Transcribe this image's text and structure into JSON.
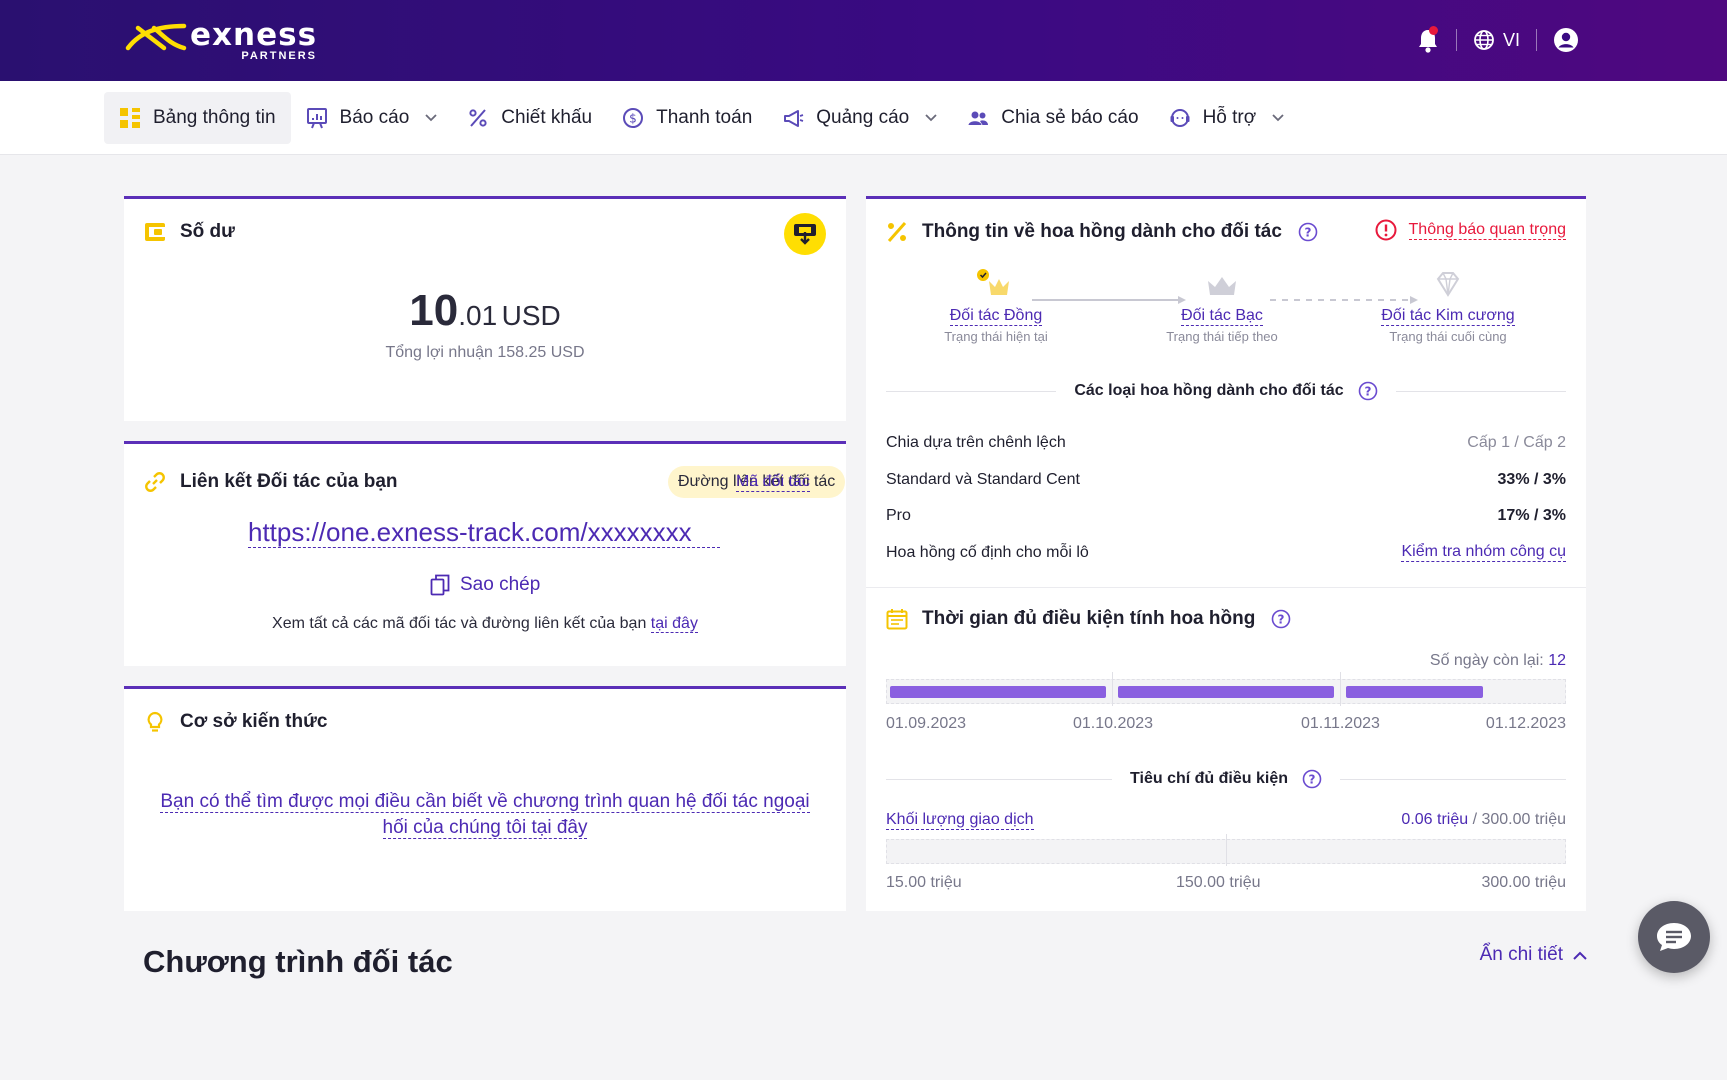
{
  "brand": {
    "name": "exness",
    "sub": "PARTNERS"
  },
  "header": {
    "language": "VI"
  },
  "nav": {
    "items": [
      {
        "label": "Bảng thông tin"
      },
      {
        "label": "Báo cáo"
      },
      {
        "label": "Chiết khấu"
      },
      {
        "label": "Thanh toán"
      },
      {
        "label": "Quảng cáo"
      },
      {
        "label": "Chia sẻ báo cáo"
      },
      {
        "label": "Hỗ trợ"
      }
    ]
  },
  "balance": {
    "title": "Số dư",
    "amount_int": "10",
    "amount_dec": ".01",
    "currency": "USD",
    "total_profit": "Tổng lợi nhuận 158.25 USD"
  },
  "partner_link": {
    "title": "Liên kết Đối tác của bạn",
    "pill": "Đường liên kết đối tác",
    "code_tab": "Mã đối tác",
    "url": "https://one.exness-track.com/xxxxxxxx",
    "copy": "Sao chép",
    "see_all_prefix": "Xem tất cả các mã đối tác và đường liên kết của bạn",
    "see_all_link": "tại đây"
  },
  "knowledge": {
    "title": "Cơ sở kiến thức",
    "line1": "Bạn có thể tìm được mọi điều cần biết về chương trình quan hệ đối tác ngoại",
    "line2": "hối của chúng tôi tại đây"
  },
  "commission": {
    "title": "Thông tin về hoa hồng dành cho đối tác",
    "important": "Thông báo quan trọng",
    "steps": [
      {
        "name": "Đối tác Đồng",
        "status": "Trạng thái hiện tại"
      },
      {
        "name": "Đối tác Bạc",
        "status": "Trạng thái tiếp theo"
      },
      {
        "name": "Đối tác Kim cương",
        "status": "Trạng thái cuối cùng"
      }
    ],
    "types_title": "Các loại hoa hồng dành cho đối tác",
    "rows": [
      {
        "label": "Chia dựa trên chênh lệch",
        "value": "Cấp 1 / Cấp 2"
      },
      {
        "label": "Standard và Standard Cent",
        "value": "33% / 3%"
      },
      {
        "label": "Pro",
        "value": "17% / 3%"
      },
      {
        "label": "Hoa hồng cố định cho mỗi lô",
        "value": "Kiểm tra nhóm công cụ"
      }
    ]
  },
  "eligibility": {
    "title": "Thời gian đủ điều kiện tính hoa hồng",
    "days_left_label": "Số ngày còn lại:",
    "days_left": "12",
    "progress_fraction": 0.9,
    "dates": [
      "01.09.2023",
      "01.10.2023",
      "01.11.2023",
      "01.12.2023"
    ],
    "criteria_title": "Tiêu chí đủ điều kiện",
    "volume_label": "Khối lượng giao dịch",
    "volume_current": "0.06 triệu",
    "volume_target": "/ 300.00 triệu",
    "volume_ticks": [
      "15.00 triệu",
      "150.00 triệu",
      "300.00 triệu"
    ]
  },
  "program": {
    "title": "Chương trình đối tác",
    "hide": "Ẩn chi tiết"
  },
  "colors": {
    "accent": "#4c2ab3",
    "header": "#2a1070",
    "yellow": "#ffde02",
    "alert": "#e8193c"
  }
}
